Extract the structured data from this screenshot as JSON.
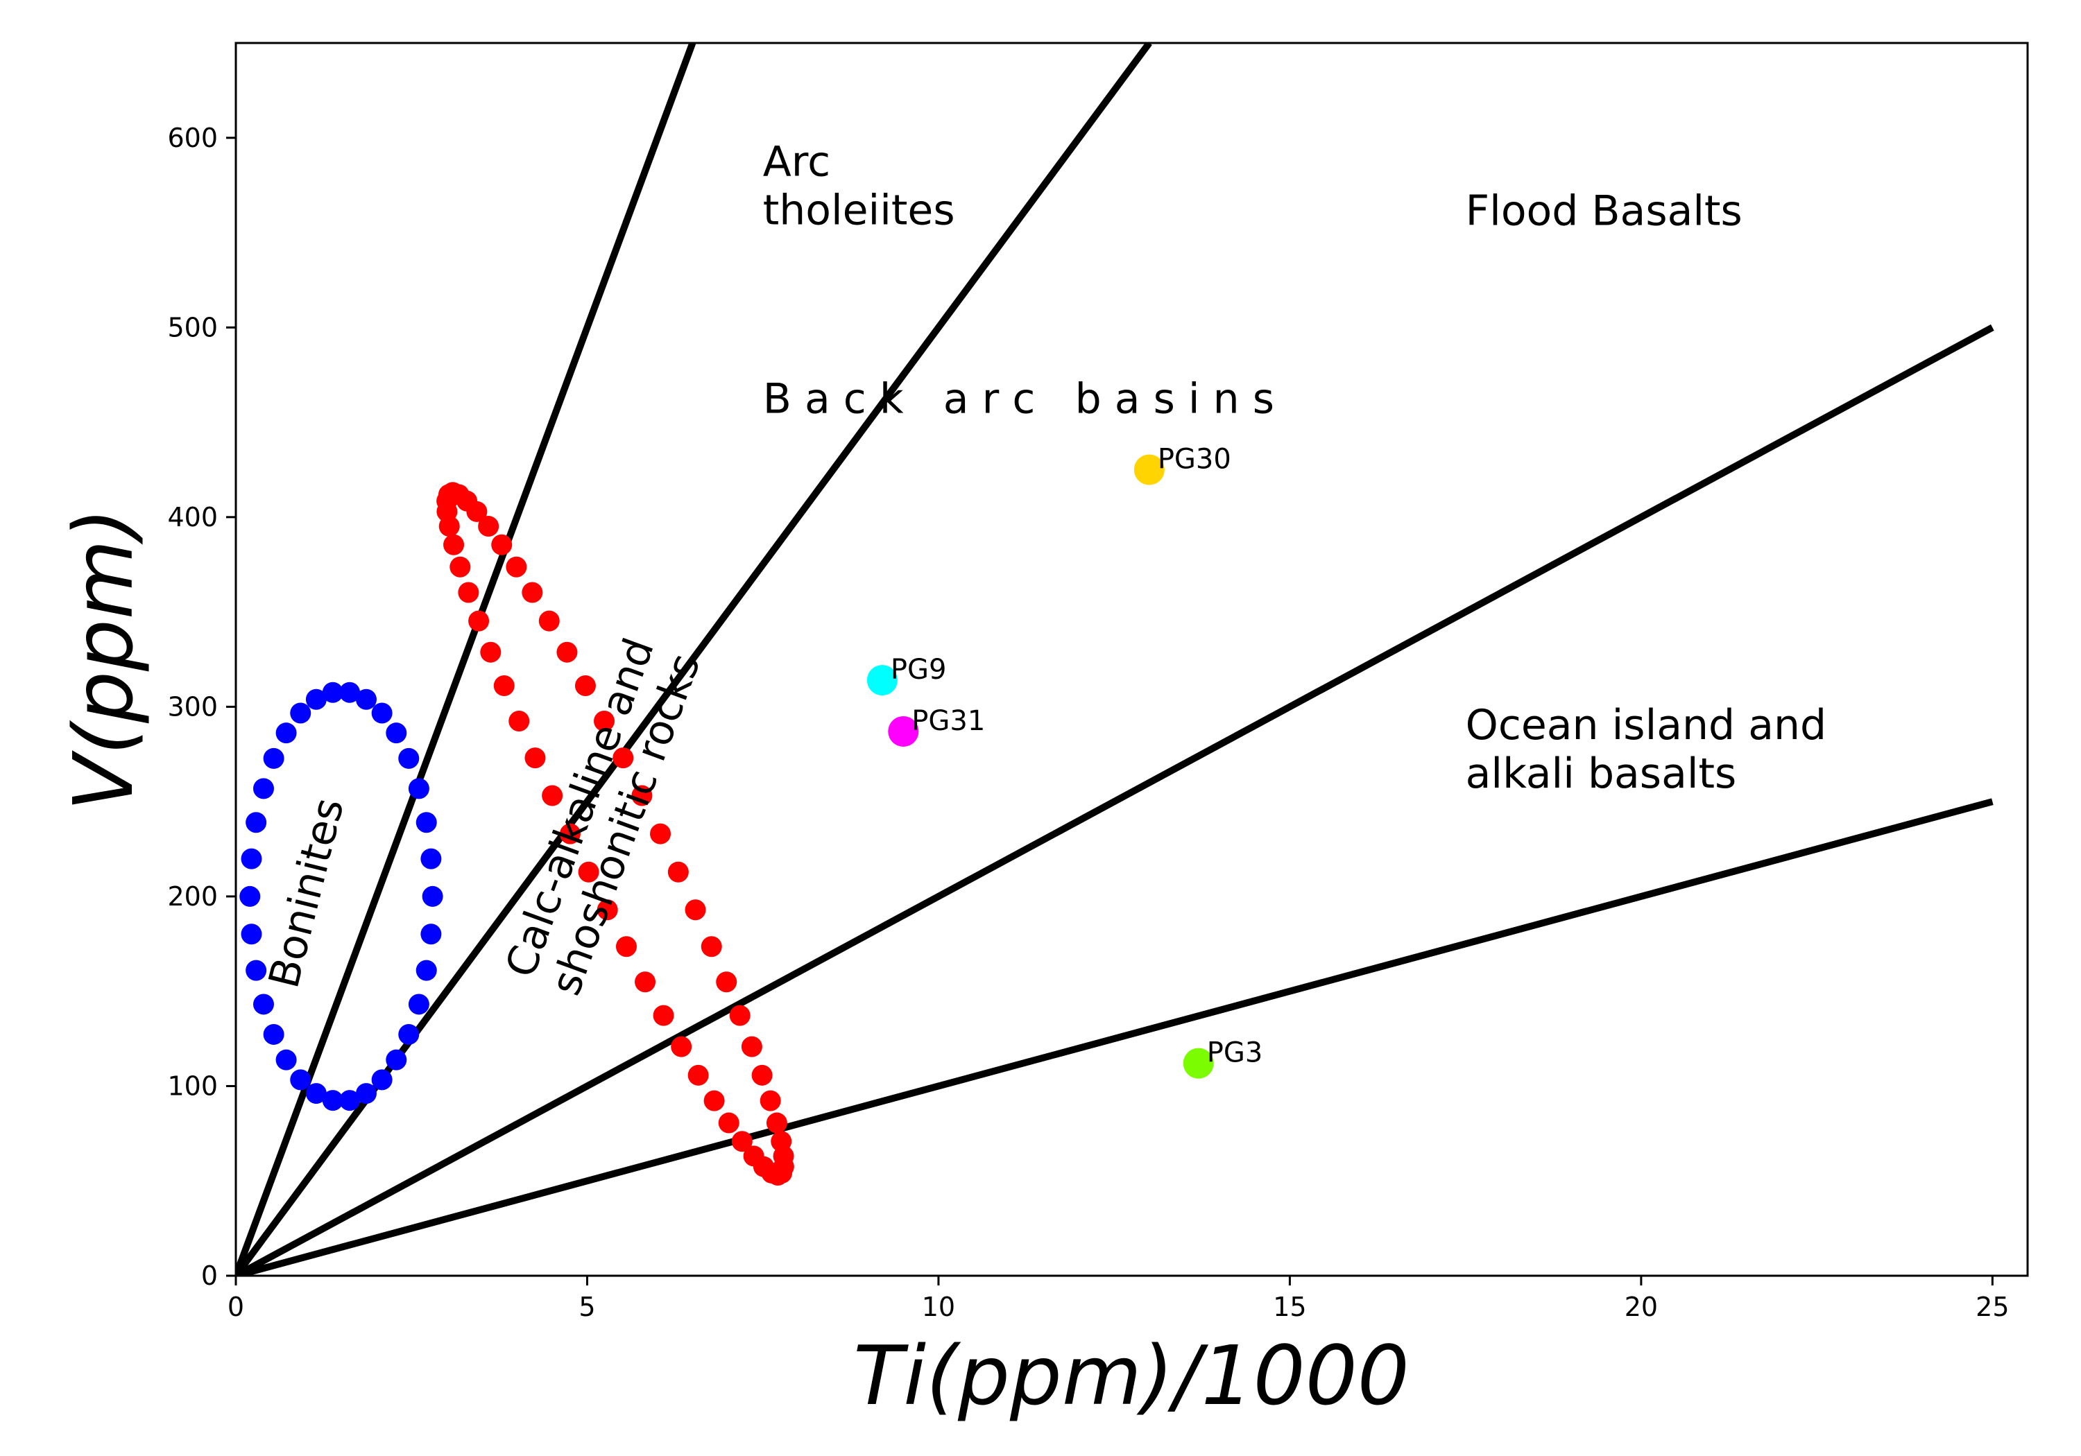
{
  "chart_data": {
    "type": "scatter",
    "title": "",
    "xlabel": "Ti(ppm)/1000",
    "ylabel": "V(ppm)",
    "xlim": [
      0,
      25.5
    ],
    "ylim": [
      0,
      650
    ],
    "xticks": [
      0,
      5,
      10,
      15,
      20,
      25
    ],
    "yticks": [
      0,
      100,
      200,
      300,
      400,
      500,
      600
    ],
    "grid": false,
    "boundary_lines": [
      {
        "ti_v_ratio": 10,
        "x": [
          0,
          6.5
        ],
        "y": [
          0,
          650
        ]
      },
      {
        "ti_v_ratio": 20,
        "x": [
          0,
          13
        ],
        "y": [
          0,
          650
        ]
      },
      {
        "ti_v_ratio": 50,
        "x": [
          0,
          25
        ],
        "y": [
          0,
          500
        ]
      },
      {
        "ti_v_ratio": 100,
        "x": [
          0,
          25
        ],
        "y": [
          0,
          250
        ]
      }
    ],
    "fields": [
      {
        "label": "Arc\ntholeiites",
        "x": 7.5,
        "y": 580
      },
      {
        "label": "Flood Basalts",
        "x": 17.5,
        "y": 554
      },
      {
        "label": "B a c k   a r c   b a s i n s",
        "x": 7.5,
        "y": 455
      },
      {
        "label": "Ocean island and\nalkali basalts",
        "x": 17.5,
        "y": 283
      }
    ],
    "ellipses": [
      {
        "label": "Boninites",
        "color": "#0000ff",
        "cx": 1.5,
        "cy": 200,
        "rx": 1.3,
        "ry": 108,
        "count": 34,
        "label_x": 1.2,
        "label_y": 200,
        "label_rotation": -76
      },
      {
        "label": "Calc-alkaline and\nshoshonitic rocks",
        "color": "#ff0000",
        "cx": 5.4,
        "cy": 233,
        "rx": 2.4,
        "ry": 180,
        "tilt": 1.3,
        "count": 56,
        "label_x": 5.4,
        "label_y": 240,
        "label_rotation": -70
      }
    ],
    "points": [
      {
        "name": "PG30",
        "x": 13.0,
        "y": 425,
        "color": "#ffd400"
      },
      {
        "name": "PG9",
        "x": 9.2,
        "y": 314,
        "color": "#00ffff"
      },
      {
        "name": "PG31",
        "x": 9.5,
        "y": 287,
        "color": "#ff00ff"
      },
      {
        "name": "PG3",
        "x": 13.7,
        "y": 112,
        "color": "#7cfc00"
      }
    ]
  }
}
